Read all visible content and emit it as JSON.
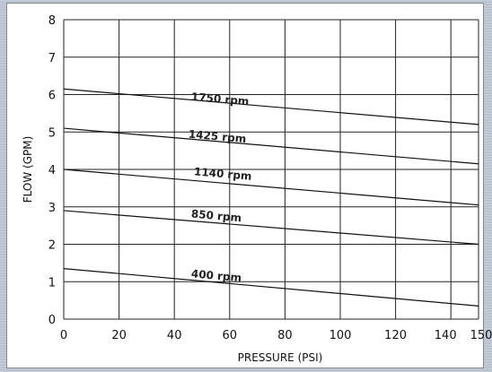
{
  "chart_data": {
    "type": "line",
    "title": "",
    "xlabel": "PRESSURE (PSI)",
    "ylabel": "FLOW (GPM)",
    "xlim": [
      0,
      150
    ],
    "ylim": [
      0,
      8
    ],
    "x_ticks": [
      "0",
      "20",
      "40",
      "60",
      "80",
      "100",
      "120",
      "140",
      "150"
    ],
    "x_tick_values": [
      0,
      20,
      40,
      60,
      80,
      100,
      120,
      140,
      150
    ],
    "y_ticks": [
      "0",
      "1",
      "2",
      "3",
      "4",
      "5",
      "6",
      "7",
      "8"
    ],
    "y_tick_values": [
      0,
      1,
      2,
      3,
      4,
      5,
      6,
      7,
      8
    ],
    "grid": true,
    "series": [
      {
        "name": "1750 rpm",
        "x": [
          0,
          150
        ],
        "y": [
          6.15,
          5.2
        ],
        "label_at": [
          46,
          5.85
        ],
        "slope_deg": 5
      },
      {
        "name": "1425 rpm",
        "x": [
          0,
          150
        ],
        "y": [
          5.1,
          4.15
        ],
        "label_at": [
          45,
          4.85
        ],
        "slope_deg": 5
      },
      {
        "name": "1140 rpm",
        "x": [
          0,
          150
        ],
        "y": [
          4.0,
          3.05
        ],
        "label_at": [
          47,
          3.85
        ],
        "slope_deg": 5
      },
      {
        "name": "850 rpm",
        "x": [
          0,
          150
        ],
        "y": [
          2.9,
          2.0
        ],
        "label_at": [
          46,
          2.72
        ],
        "slope_deg": 5
      },
      {
        "name": "400 rpm",
        "x": [
          0,
          150
        ],
        "y": [
          1.35,
          0.35
        ],
        "label_at": [
          46,
          1.12
        ],
        "slope_deg": 5
      }
    ]
  }
}
